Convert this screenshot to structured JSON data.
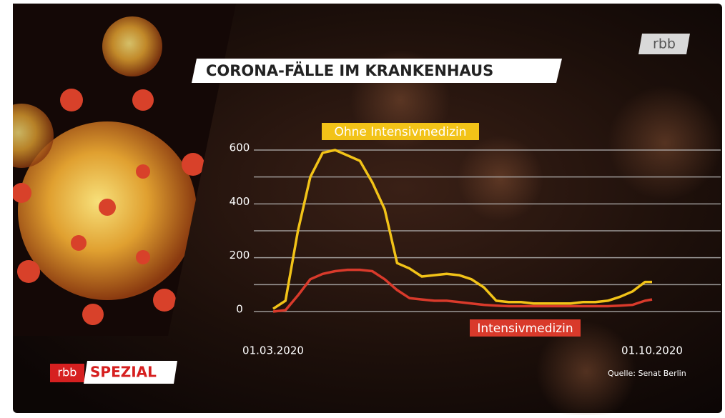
{
  "chart_data": {
    "type": "line",
    "title": "CORONA-FÄLLE IM KRANKENHAUS",
    "channel_logo": "rbb",
    "program": {
      "logo": "rbb",
      "name": "SPEZIAL"
    },
    "source": "Quelle: Senat Berlin",
    "x": [
      "2020-03-01",
      "2020-03-08",
      "2020-03-15",
      "2020-03-22",
      "2020-03-29",
      "2020-04-05",
      "2020-04-12",
      "2020-04-19",
      "2020-04-26",
      "2020-05-03",
      "2020-05-10",
      "2020-05-17",
      "2020-05-24",
      "2020-05-31",
      "2020-06-07",
      "2020-06-14",
      "2020-06-21",
      "2020-06-28",
      "2020-07-05",
      "2020-07-12",
      "2020-07-19",
      "2020-07-26",
      "2020-08-02",
      "2020-08-09",
      "2020-08-16",
      "2020-08-23",
      "2020-08-30",
      "2020-09-06",
      "2020-09-13",
      "2020-09-20",
      "2020-09-27",
      "2020-10-01"
    ],
    "series": [
      {
        "name": "Ohne Intensivmedizin",
        "color": "#f2c318",
        "values": [
          10,
          40,
          300,
          500,
          590,
          600,
          580,
          560,
          480,
          380,
          180,
          160,
          130,
          135,
          140,
          135,
          120,
          90,
          40,
          35,
          35,
          30,
          30,
          30,
          30,
          35,
          35,
          40,
          55,
          75,
          110,
          110
        ]
      },
      {
        "name": "Intensivmedizin",
        "color": "#d93a2b",
        "values": [
          0,
          5,
          60,
          120,
          140,
          150,
          155,
          155,
          150,
          120,
          80,
          50,
          45,
          40,
          40,
          35,
          30,
          25,
          22,
          20,
          20,
          20,
          20,
          20,
          20,
          20,
          20,
          20,
          22,
          25,
          40,
          45
        ]
      }
    ],
    "xlim": [
      "2020-03-01",
      "2020-10-01"
    ],
    "xticks": [
      {
        "value": "2020-03-01",
        "label": "01.03.2020"
      },
      {
        "value": "2020-10-01",
        "label": "01.10.2020"
      }
    ],
    "ylim": [
      0,
      600
    ],
    "yticks": [
      0,
      200,
      400,
      600
    ],
    "minor_yticks": [
      100,
      300,
      500
    ],
    "grid": true
  }
}
